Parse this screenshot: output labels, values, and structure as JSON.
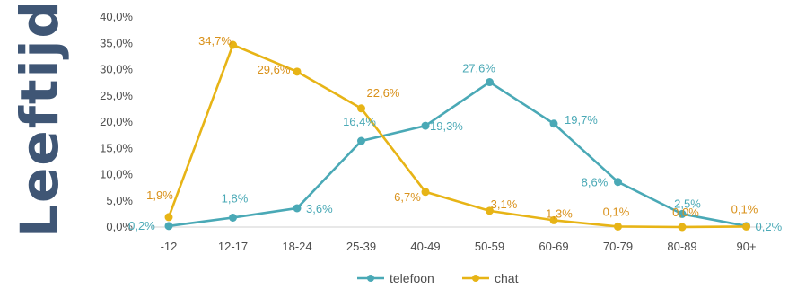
{
  "chart_data": {
    "type": "line",
    "title": "",
    "xlabel": "",
    "ylabel": "Leeftijd",
    "categories": [
      "-12",
      "12-17",
      "18-24",
      "25-39",
      "40-49",
      "50-59",
      "60-69",
      "70-79",
      "80-89",
      "90+"
    ],
    "ylim": [
      0,
      40
    ],
    "yticks": [
      "0,0%",
      "5,0%",
      "10,0%",
      "15,0%",
      "20,0%",
      "25,0%",
      "30,0%",
      "35,0%",
      "40,0%"
    ],
    "grid": false,
    "legend_position": "bottom",
    "series": [
      {
        "name": "telefoon",
        "color": "#4aa9b6",
        "values": [
          0.2,
          1.8,
          3.6,
          16.4,
          19.3,
          27.6,
          19.7,
          8.6,
          2.5,
          0.2
        ],
        "labels": [
          "0,2%",
          "1,8%",
          "3,6%",
          "16,4%",
          "19,3%",
          "27,6%",
          "19,7%",
          "8,6%",
          "2,5%",
          "0,2%"
        ]
      },
      {
        "name": "chat",
        "color": "#e7b416",
        "label_color": "#d9911a",
        "values": [
          1.9,
          34.7,
          29.6,
          22.6,
          6.7,
          3.1,
          1.3,
          0.1,
          0.0,
          0.1
        ],
        "labels": [
          "1,9%",
          "34,7%",
          "29,6%",
          "22,6%",
          "6,7%",
          "3,1%",
          "1,3%",
          "0,1%",
          "0,0%",
          "0,1%"
        ]
      }
    ]
  }
}
